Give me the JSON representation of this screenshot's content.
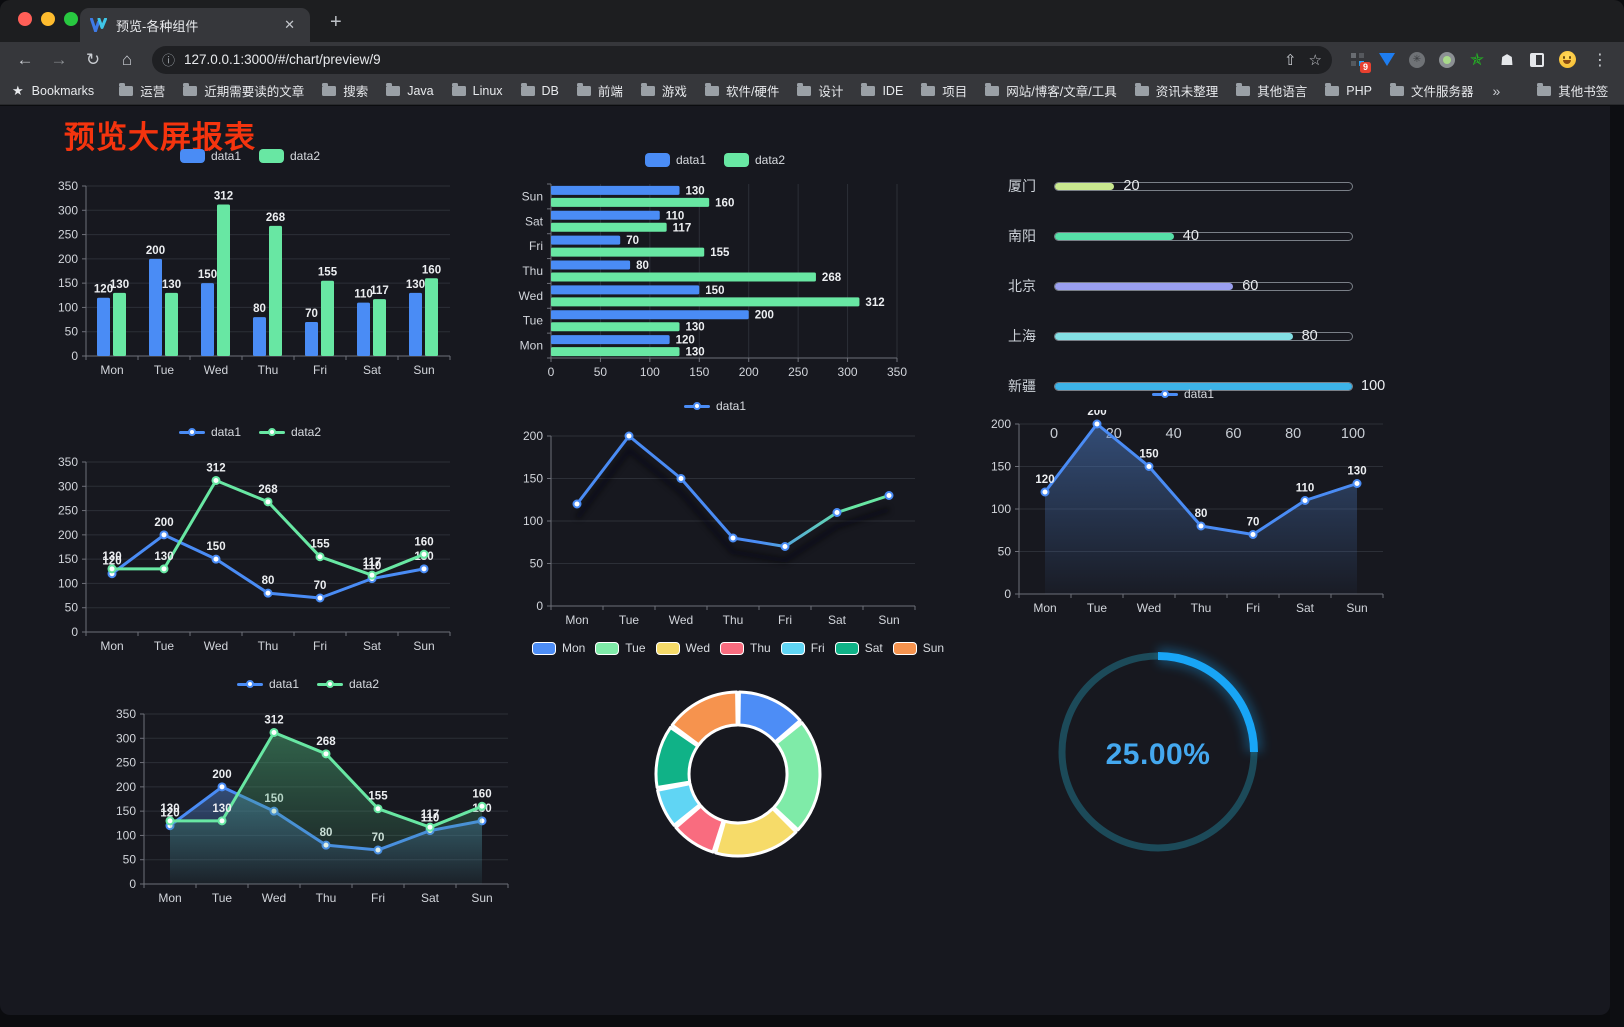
{
  "browser": {
    "traffic_lights": {
      "close": "#FF5F57",
      "minimize": "#FEBC2E",
      "zoom": "#28C840"
    },
    "tab": {
      "title": "预览-各种组件",
      "close_glyph": "✕",
      "new_tab_glyph": "+"
    },
    "toolbar": {
      "back_glyph": "←",
      "forward_glyph": "→",
      "reload_glyph": "↻",
      "home_glyph": "⌂",
      "info_glyph": "ⓘ",
      "url": "127.0.0.1:3000/#/chart/preview/9",
      "share_glyph": "⇧",
      "star_glyph": "☆",
      "menu_glyph": "⋮",
      "extension_badge": "9"
    },
    "bookmarks": {
      "star_glyph": "★",
      "label": "Bookmarks",
      "folders": [
        "运营",
        "近期需要读的文章",
        "搜索",
        "Java",
        "Linux",
        "DB",
        "前端",
        "游戏",
        "软件/硬件",
        "设计",
        "IDE",
        "项目",
        "网站/博客/文章/工具",
        "资讯未整理",
        "其他语言",
        "PHP",
        "文件服务器"
      ],
      "overflow_glyph": "»",
      "other_bookmarks": "其他书签"
    }
  },
  "page": {
    "title": "预览大屏报表",
    "title_color": "#F5340E"
  },
  "colors": {
    "data1": "#4A8CF5",
    "data2": "#68E7A3",
    "grid": "#2C2F37",
    "axis": "#6E7079",
    "tick_text": "#D2D5DB",
    "label": "#ECEEF1"
  },
  "chart_data": [
    {
      "type": "bar",
      "orientation": "vertical",
      "title": "",
      "categories": [
        "Mon",
        "Tue",
        "Wed",
        "Thu",
        "Fri",
        "Sat",
        "Sun"
      ],
      "series": [
        {
          "name": "data1",
          "values": [
            120,
            200,
            150,
            80,
            70,
            110,
            130
          ],
          "color": "#4A8CF5"
        },
        {
          "name": "data2",
          "values": [
            130,
            130,
            312,
            268,
            155,
            117,
            160
          ],
          "color": "#68E7A3"
        }
      ],
      "ylim": [
        0,
        350
      ],
      "ytick_step": 50,
      "grid": true,
      "legend_position": "top",
      "legend_marker": "rect",
      "value_labels": true
    },
    {
      "type": "bar",
      "orientation": "horizontal",
      "title": "",
      "categories": [
        "Mon",
        "Tue",
        "Wed",
        "Thu",
        "Fri",
        "Sat",
        "Sun"
      ],
      "series": [
        {
          "name": "data1",
          "values": [
            120,
            200,
            150,
            80,
            70,
            110,
            130
          ],
          "color": "#4A8CF5"
        },
        {
          "name": "data2",
          "values": [
            130,
            130,
            312,
            268,
            155,
            117,
            160
          ],
          "color": "#68E7A3"
        }
      ],
      "xlim": [
        0,
        350
      ],
      "xtick_step": 50,
      "grid": true,
      "legend_position": "top",
      "legend_marker": "rect",
      "value_labels": true
    },
    {
      "type": "bar",
      "variant": "progress-list",
      "title": "",
      "items": [
        {
          "label": "厦门",
          "value": 20,
          "color": "#C9E88F"
        },
        {
          "label": "南阳",
          "value": 40,
          "color": "#56DFA8"
        },
        {
          "label": "北京",
          "value": 60,
          "color": "#9A9FF0"
        },
        {
          "label": "上海",
          "value": 80,
          "color": "#83DFE4"
        },
        {
          "label": "新疆",
          "value": 100,
          "color": "#3DB3E8"
        }
      ],
      "xlim": [
        0,
        100
      ],
      "xticks": [
        0,
        20,
        40,
        60,
        80,
        100
      ]
    },
    {
      "type": "line",
      "title": "",
      "categories": [
        "Mon",
        "Tue",
        "Wed",
        "Thu",
        "Fri",
        "Sat",
        "Sun"
      ],
      "series": [
        {
          "name": "data1",
          "values": [
            120,
            200,
            150,
            80,
            70,
            110,
            130
          ],
          "color": "#4A8CF5"
        },
        {
          "name": "data2",
          "values": [
            130,
            130,
            312,
            268,
            155,
            117,
            160
          ],
          "color": "#68E7A3"
        }
      ],
      "ylim": [
        0,
        350
      ],
      "ytick_step": 50,
      "grid": true,
      "legend_position": "top",
      "legend_marker": "line",
      "value_labels": true
    },
    {
      "type": "line",
      "title": "",
      "categories": [
        "Mon",
        "Tue",
        "Wed",
        "Thu",
        "Fri",
        "Sat",
        "Sun"
      ],
      "series": [
        {
          "name": "data1",
          "values": [
            120,
            200,
            150,
            80,
            70,
            110,
            130
          ],
          "color": "#4A8CF5",
          "gradient": [
            "#4A8CF5",
            "#68E7A3"
          ],
          "shadow": true
        }
      ],
      "ylim": [
        0,
        200
      ],
      "ytick_step": 50,
      "grid": true,
      "legend_position": "top",
      "legend_marker": "line",
      "value_labels": false
    },
    {
      "type": "area",
      "title": "",
      "categories": [
        "Mon",
        "Tue",
        "Wed",
        "Thu",
        "Fri",
        "Sat",
        "Sun"
      ],
      "series": [
        {
          "name": "data1",
          "values": [
            120,
            200,
            150,
            80,
            70,
            110,
            130
          ],
          "color": "#4A8CF5",
          "area": true
        }
      ],
      "ylim": [
        0,
        200
      ],
      "ytick_step": 50,
      "grid": true,
      "legend_position": "top",
      "legend_marker": "line",
      "value_labels": true
    },
    {
      "type": "area",
      "title": "",
      "categories": [
        "Mon",
        "Tue",
        "Wed",
        "Thu",
        "Fri",
        "Sat",
        "Sun"
      ],
      "series": [
        {
          "name": "data1",
          "values": [
            120,
            200,
            150,
            80,
            70,
            110,
            130
          ],
          "color": "#4A8CF5",
          "area": true
        },
        {
          "name": "data2",
          "values": [
            130,
            130,
            312,
            268,
            155,
            117,
            160
          ],
          "color": "#68E7A3",
          "area": true
        }
      ],
      "ylim": [
        0,
        350
      ],
      "ytick_step": 50,
      "grid": true,
      "legend_position": "top",
      "legend_marker": "line",
      "value_labels": true
    },
    {
      "type": "pie",
      "variant": "donut",
      "title": "",
      "categories": [
        "Mon",
        "Tue",
        "Wed",
        "Thu",
        "Fri",
        "Sat",
        "Sun"
      ],
      "values": [
        120,
        200,
        150,
        80,
        70,
        110,
        130
      ],
      "slice_colors": [
        "#4D8DF6",
        "#7FEBA8",
        "#F6DB69",
        "#F96C7F",
        "#60D5F4",
        "#10B287",
        "#F6934E"
      ],
      "border_color": "#FFFFFF",
      "legend_position": "top",
      "legend_marker": "rect-border"
    },
    {
      "type": "gauge",
      "title": "",
      "value": 25,
      "max": 100,
      "display": "25.00%",
      "track_color": "#1C4A59",
      "fill_color": "#18A5F6",
      "text_color": "#44A8EF"
    }
  ]
}
